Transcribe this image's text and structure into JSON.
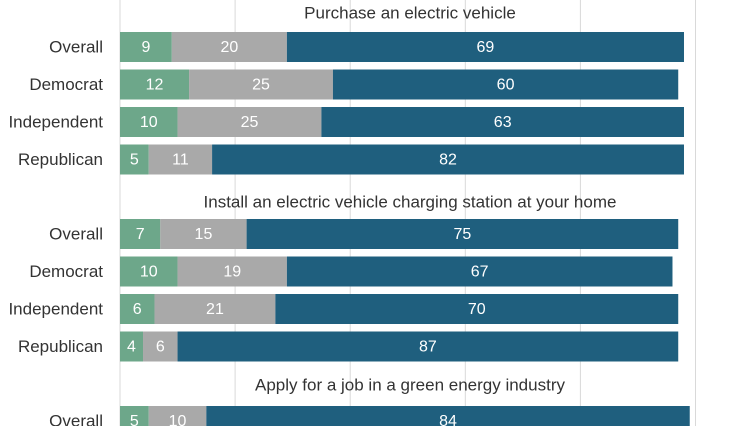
{
  "chart_data": {
    "type": "bar",
    "orientation": "horizontal",
    "stacked": true,
    "grid": true,
    "xlim": [
      0,
      100
    ],
    "colors": {
      "green": "#6da78a",
      "gray": "#a9a9a9",
      "blue": "#1f5f7e",
      "grid": "#d9d9d9"
    },
    "series_colors": [
      "green",
      "gray",
      "blue"
    ],
    "panels": [
      {
        "title": "Purchase an electric vehicle",
        "categories": [
          "Overall",
          "Democrat",
          "Independent",
          "Republican"
        ],
        "series": [
          {
            "values": [
              9,
              12,
              10,
              5
            ]
          },
          {
            "values": [
              20,
              25,
              25,
              11
            ]
          },
          {
            "values": [
              69,
              60,
              63,
              82
            ]
          }
        ]
      },
      {
        "title": "Install an electric vehicle charging station at your home",
        "categories": [
          "Overall",
          "Democrat",
          "Independent",
          "Republican"
        ],
        "series": [
          {
            "values": [
              7,
              10,
              6,
              4
            ]
          },
          {
            "values": [
              15,
              19,
              21,
              6
            ]
          },
          {
            "values": [
              75,
              67,
              70,
              87
            ]
          }
        ]
      },
      {
        "title": "Apply for a job in a green energy industry",
        "categories": [
          "Overall"
        ],
        "series": [
          {
            "values": [
              5
            ]
          },
          {
            "values": [
              10
            ]
          },
          {
            "values": [
              84
            ]
          }
        ]
      }
    ]
  }
}
